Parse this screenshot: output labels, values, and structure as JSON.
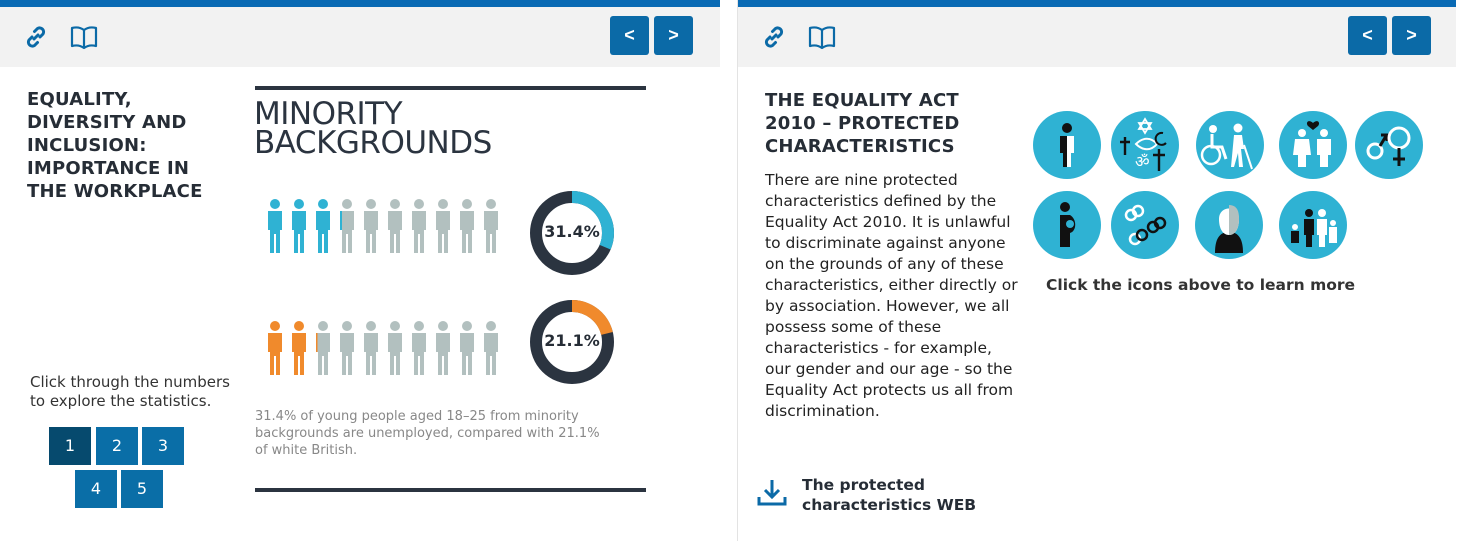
{
  "colors": {
    "accent": "#0a6ab4",
    "button": "#0b6aa7",
    "teal": "#2fb2d3",
    "orange": "#f08a2c",
    "grey": "#b2c0bf",
    "dark": "#2b3440"
  },
  "left": {
    "nav": {
      "prev": "<",
      "next": ">"
    },
    "icons": {
      "link": "link-icon",
      "book": "book-icon"
    },
    "heading": [
      "EQUALITY,",
      "DIVERSITY AND",
      "INCLUSION:",
      "IMPORTANCE IN",
      "THE WORKPLACE"
    ],
    "stat": {
      "title_line1": "MINORITY",
      "title_line2": "BACKGROUNDS",
      "minority_pct_label": "31.4%",
      "minority_pct": 31.4,
      "white_pct_label": "21.1%",
      "white_pct": 21.1,
      "caption": [
        "31.4% of young people aged 18–25 from minority",
        "backgrounds are unemployed, compared with 21.1%",
        "of white British."
      ]
    },
    "instructions": [
      "Click through the numbers",
      "to explore the statistics."
    ],
    "pages": [
      "1",
      "2",
      "3",
      "4",
      "5"
    ],
    "active_page": "1"
  },
  "right": {
    "nav": {
      "prev": "<",
      "next": ">"
    },
    "heading": [
      "THE EQUALITY ACT",
      "2010 – PROTECTED",
      "CHARACTERISTICS"
    ],
    "body": [
      "There are nine protected",
      "characteristics defined by the",
      "Equality Act 2010. It is unlawful",
      "to discriminate against anyone",
      "on the grounds of any of these",
      "characteristics, either directly or",
      "by association. However, we all",
      "possess some of these",
      "characteristics - for example,",
      "our gender and our age - so the",
      "Equality Act protects us all from",
      "discrimination."
    ],
    "icons": [
      "gender-reassignment-icon",
      "religion-belief-icon",
      "disability-icon",
      "marriage-civil-partnership-icon",
      "sex-icon",
      "pregnancy-maternity-icon",
      "sexual-orientation-icon",
      "race-icon",
      "age-icon"
    ],
    "learn_more": "Click the icons above to learn more",
    "download": [
      "The protected",
      "characteristics WEB"
    ]
  }
}
